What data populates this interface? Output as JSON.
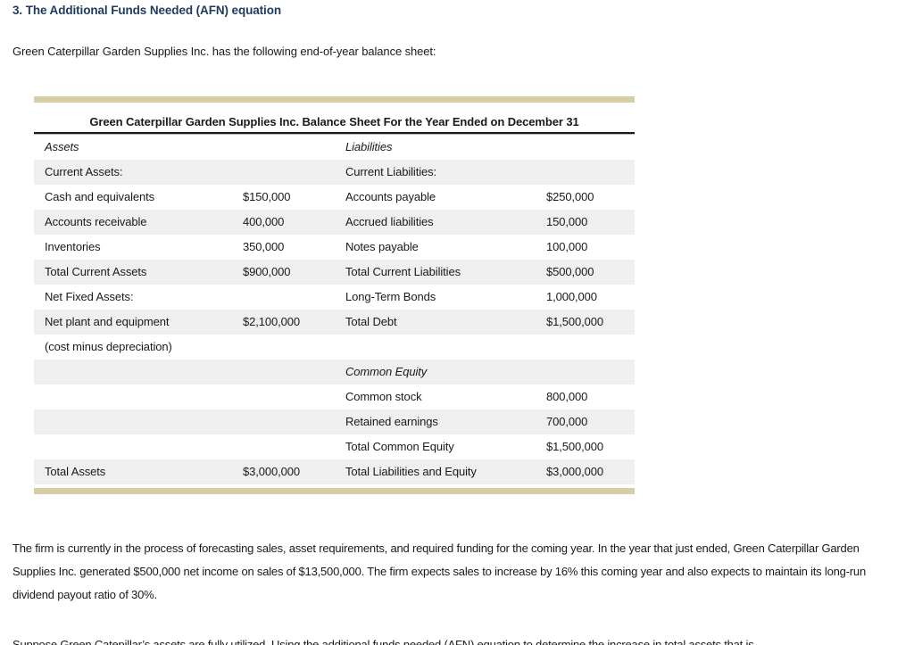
{
  "colors": {
    "heading_blue": "#1e3a5f",
    "accent_bar": "#d6cea4",
    "row_shade": "#efefef",
    "text": "#1a1a1a",
    "rule": "#1a1a1a"
  },
  "header": {
    "title": "3. The Additional Funds Needed (AFN) equation"
  },
  "intro": "Green Caterpillar Garden Supplies Inc. has the following end-of-year balance sheet:",
  "balance_sheet": {
    "title": "Green Caterpillar Garden Supplies Inc. Balance Sheet For the Year Ended on December 31",
    "rows": [
      {
        "cells": [
          "Assets",
          "",
          "Liabilities",
          ""
        ]
      },
      {
        "cells": [
          "Current Assets:",
          "",
          "Current Liabilities:",
          ""
        ]
      },
      {
        "cells": [
          "Cash and equivalents",
          "$150,000",
          "Accounts payable",
          "$250,000"
        ]
      },
      {
        "cells": [
          "Accounts receivable",
          "400,000",
          "Accrued liabilities",
          "150,000"
        ]
      },
      {
        "cells": [
          "Inventories",
          "350,000",
          "Notes payable",
          "100,000"
        ]
      },
      {
        "cells": [
          "Total Current Assets",
          "$900,000",
          "Total Current Liabilities",
          "$500,000"
        ]
      },
      {
        "cells": [
          "Net Fixed Assets:",
          "",
          "Long-Term Bonds",
          "1,000,000"
        ]
      },
      {
        "cells": [
          "Net plant and equipment",
          "$2,100,000",
          "Total Debt",
          "$1,500,000"
        ]
      },
      {
        "cells": [
          "(cost minus depreciation)",
          "",
          "",
          ""
        ]
      },
      {
        "cells": [
          "",
          "",
          "Common Equity",
          ""
        ]
      },
      {
        "cells": [
          "",
          "",
          "Common stock",
          "800,000"
        ]
      },
      {
        "cells": [
          "",
          "",
          "Retained earnings",
          "700,000"
        ]
      },
      {
        "cells": [
          "",
          "",
          "Total Common Equity",
          "$1,500,000"
        ]
      },
      {
        "cells": [
          "Total Assets",
          "$3,000,000",
          "Total Liabilities and Equity",
          "$3,000,000"
        ]
      }
    ]
  },
  "body": {
    "paragraph1": "The firm is currently in the process of forecasting sales, asset requirements, and required funding for the coming year. In the year that just ended, Green Caterpillar Garden Supplies Inc. generated $500,000 net income on sales of $13,500,000. The firm expects sales to increase by 16% this coming year and also expects to maintain its long-run dividend payout ratio of 30%.",
    "paragraph2": "Suppose Green Catepillar’s assets are fully utilized. Using the additional funds needed (AFN) equation to determine the increase in total assets that is"
  }
}
